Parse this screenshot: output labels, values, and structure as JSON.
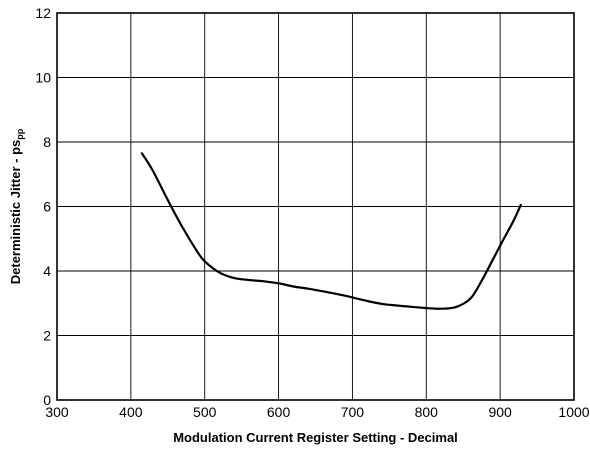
{
  "chart_data": {
    "type": "line",
    "title": "",
    "xlabel": "Modulation Current Register Setting - Decimal",
    "ylabel": {
      "main": "Deterministic Jitter - ps",
      "subscript": "pp"
    },
    "xlim": [
      300,
      1000
    ],
    "ylim": [
      0,
      12
    ],
    "xticks": [
      300,
      400,
      500,
      600,
      700,
      800,
      900,
      1000
    ],
    "yticks": [
      0,
      2,
      4,
      6,
      8,
      10,
      12
    ],
    "grid": true,
    "legend": "none",
    "series": [
      {
        "color": "#000000",
        "x": [
          415,
          430,
          450,
          470,
          490,
          500,
          520,
          540,
          560,
          580,
          600,
          620,
          640,
          660,
          680,
          700,
          720,
          740,
          760,
          780,
          800,
          820,
          840,
          860,
          875,
          890,
          905,
          918,
          928
        ],
        "y": [
          7.65,
          7.1,
          6.2,
          5.35,
          4.6,
          4.3,
          3.95,
          3.78,
          3.72,
          3.68,
          3.62,
          3.52,
          3.45,
          3.37,
          3.28,
          3.18,
          3.07,
          2.98,
          2.93,
          2.89,
          2.85,
          2.83,
          2.88,
          3.15,
          3.7,
          4.35,
          5.0,
          5.55,
          6.05
        ]
      }
    ]
  }
}
